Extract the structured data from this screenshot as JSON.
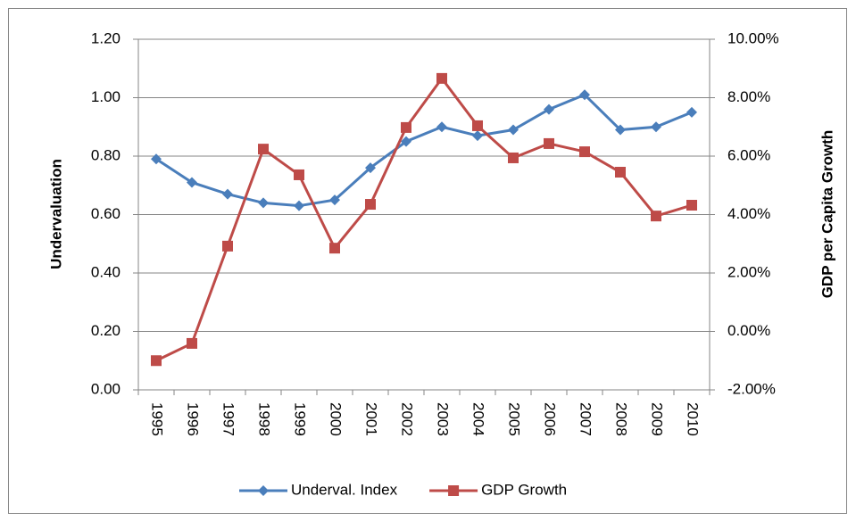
{
  "chart_data": {
    "type": "line",
    "y_label": "Undervaluation",
    "y2_label": "GDP per Capita Growth",
    "categories": [
      "1995",
      "1996",
      "1997",
      "1998",
      "1999",
      "2000",
      "2001",
      "2002",
      "2003",
      "2004",
      "2005",
      "2006",
      "2007",
      "2008",
      "2009",
      "2010"
    ],
    "series": [
      {
        "name": "Underval. Index",
        "color": "#4a7ebb",
        "marker": "diamond",
        "values": [
          0.79,
          0.71,
          0.67,
          0.64,
          0.63,
          0.65,
          0.76,
          0.85,
          0.9,
          0.87,
          0.89,
          0.96,
          1.01,
          0.89,
          0.9,
          0.95
        ]
      },
      {
        "name": "GDP Growth",
        "color": "#be4b48",
        "marker": "square",
        "axis": "y2",
        "values": [
          -1.0,
          -0.41,
          2.92,
          6.24,
          5.36,
          2.85,
          4.35,
          6.98,
          8.66,
          7.04,
          5.94,
          6.43,
          6.15,
          5.45,
          3.95,
          4.32
        ]
      }
    ],
    "ylim": [
      0,
      1.2
    ],
    "yticks": [
      {
        "value": 0,
        "label": "0.00"
      },
      {
        "value": 0.2,
        "label": "0.20"
      },
      {
        "value": 0.4,
        "label": "0.40"
      },
      {
        "value": 0.6,
        "label": "0.60"
      },
      {
        "value": 0.8,
        "label": "0.80"
      },
      {
        "value": 1.0,
        "label": "1.00"
      },
      {
        "value": 1.2,
        "label": "1.20"
      }
    ],
    "y2lim": [
      -2,
      10
    ],
    "y2ticks": [
      {
        "value": -2,
        "label": "-2.00%"
      },
      {
        "value": 0,
        "label": "0.00%"
      },
      {
        "value": 2,
        "label": "2.00%"
      },
      {
        "value": 4,
        "label": "4.00%"
      },
      {
        "value": 6,
        "label": "6.00%"
      },
      {
        "value": 8,
        "label": "8.00%"
      },
      {
        "value": 10,
        "label": "10.00%"
      }
    ],
    "grid": true,
    "legend": "bottom"
  }
}
